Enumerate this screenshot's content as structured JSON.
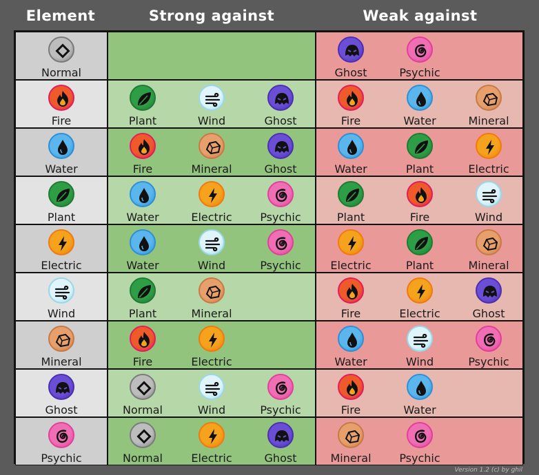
{
  "headers": {
    "element": "Element",
    "strong": "Strong against",
    "weak": "Weak against"
  },
  "footer": "Version 1.2 (c) by ghil",
  "colors": {
    "element_dark": "#cfcfcf",
    "element_light": "#e3e3e3",
    "strong_dark": "#93c47d",
    "strong_light": "#b6d7a8",
    "weak_dark": "#ea9999",
    "weak_light": "#e6b8af"
  },
  "types": {
    "Normal": {
      "icon": "diamond-icon",
      "fill": "#bdbdbd",
      "ring": "#7a7a7a"
    },
    "Fire": {
      "icon": "flame-icon",
      "fill": "#ef5a2a",
      "ring": "#e01e5a"
    },
    "Water": {
      "icon": "droplet-icon",
      "fill": "#5ab6ec",
      "ring": "#2d8fd6"
    },
    "Plant": {
      "icon": "leaf-icon",
      "fill": "#2e9e46",
      "ring": "#1f7a33"
    },
    "Electric": {
      "icon": "bolt-icon",
      "fill": "#f5a21c",
      "ring": "#f07a10"
    },
    "Wind": {
      "icon": "wind-icon",
      "fill": "#dff5fb",
      "ring": "#9ad7e8"
    },
    "Mineral": {
      "icon": "rock-icon",
      "fill": "#e7a06c",
      "ring": "#c87a45"
    },
    "Ghost": {
      "icon": "ghost-icon",
      "fill": "#6a4fd6",
      "ring": "#4b2fb0"
    },
    "Psychic": {
      "icon": "spiral-icon",
      "fill": "#f06fb4",
      "ring": "#e0409a"
    }
  },
  "rows": [
    {
      "element": "Normal",
      "strong": [],
      "weak": [
        "Ghost",
        "Psychic"
      ]
    },
    {
      "element": "Fire",
      "strong": [
        "Plant",
        "Wind",
        "Ghost"
      ],
      "weak": [
        "Fire",
        "Water",
        "Mineral"
      ]
    },
    {
      "element": "Water",
      "strong": [
        "Fire",
        "Mineral",
        "Ghost"
      ],
      "weak": [
        "Water",
        "Plant",
        "Electric"
      ]
    },
    {
      "element": "Plant",
      "strong": [
        "Water",
        "Electric",
        "Psychic"
      ],
      "weak": [
        "Plant",
        "Fire",
        "Wind"
      ]
    },
    {
      "element": "Electric",
      "strong": [
        "Water",
        "Wind",
        "Psychic"
      ],
      "weak": [
        "Electric",
        "Plant",
        "Mineral"
      ]
    },
    {
      "element": "Wind",
      "strong": [
        "Plant",
        "Mineral"
      ],
      "weak": [
        "Fire",
        "Electric",
        "Ghost"
      ]
    },
    {
      "element": "Mineral",
      "strong": [
        "Fire",
        "Electric"
      ],
      "weak": [
        "Water",
        "Wind",
        "Psychic"
      ]
    },
    {
      "element": "Ghost",
      "strong": [
        "Normal",
        "Wind",
        "Psychic"
      ],
      "weak": [
        "Fire",
        "Water"
      ]
    },
    {
      "element": "Psychic",
      "strong": [
        "Normal",
        "Electric",
        "Ghost"
      ],
      "weak": [
        "Mineral",
        "Psychic"
      ]
    }
  ]
}
